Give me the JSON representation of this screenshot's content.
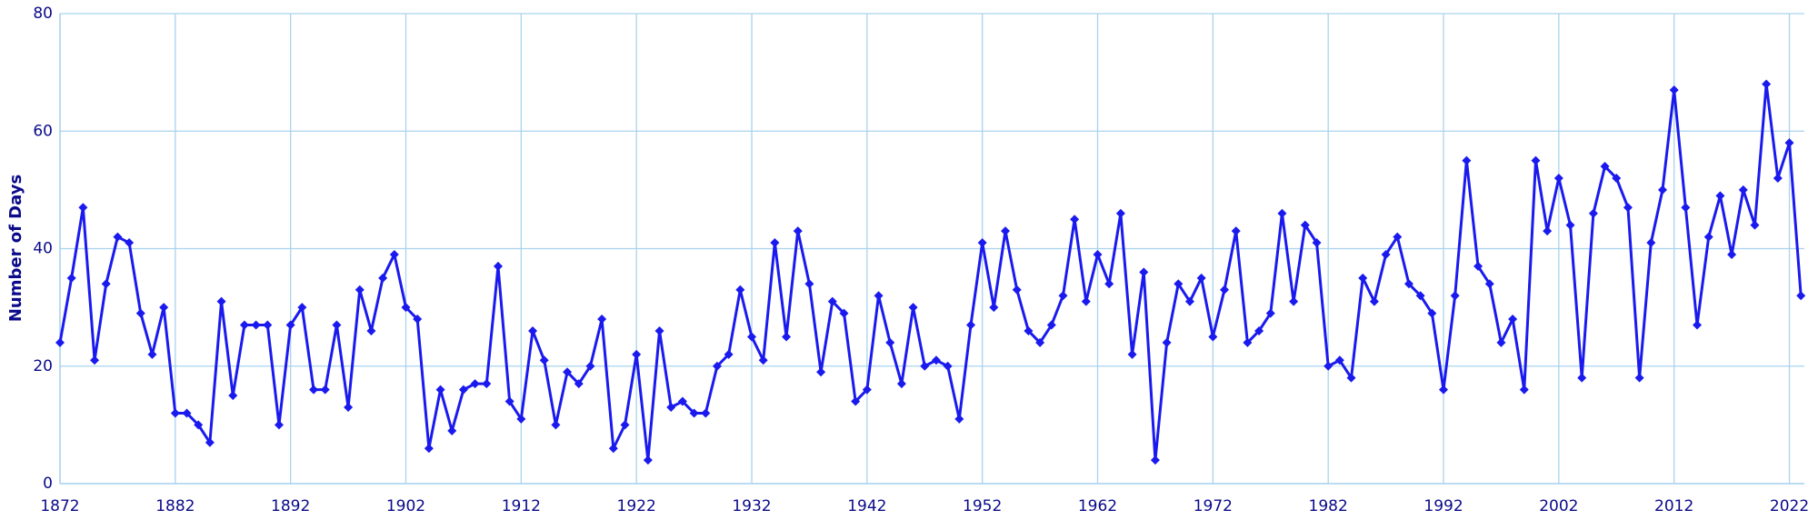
{
  "chart_data": {
    "type": "line",
    "ylabel": "Number of Days",
    "x": [
      1872,
      1873,
      1874,
      1875,
      1876,
      1877,
      1878,
      1879,
      1880,
      1881,
      1882,
      1883,
      1884,
      1885,
      1886,
      1887,
      1888,
      1889,
      1890,
      1891,
      1892,
      1893,
      1894,
      1895,
      1896,
      1897,
      1898,
      1899,
      1900,
      1901,
      1902,
      1903,
      1904,
      1905,
      1906,
      1907,
      1908,
      1909,
      1910,
      1911,
      1912,
      1913,
      1914,
      1915,
      1916,
      1917,
      1918,
      1919,
      1920,
      1921,
      1922,
      1923,
      1924,
      1925,
      1926,
      1927,
      1928,
      1929,
      1930,
      1931,
      1932,
      1933,
      1934,
      1935,
      1936,
      1937,
      1938,
      1939,
      1940,
      1941,
      1942,
      1943,
      1944,
      1945,
      1946,
      1947,
      1948,
      1949,
      1950,
      1951,
      1952,
      1953,
      1954,
      1955,
      1956,
      1957,
      1958,
      1959,
      1960,
      1961,
      1962,
      1963,
      1964,
      1965,
      1966,
      1967,
      1968,
      1969,
      1970,
      1971,
      1972,
      1973,
      1974,
      1975,
      1976,
      1977,
      1978,
      1979,
      1980,
      1981,
      1982,
      1983,
      1984,
      1985,
      1986,
      1987,
      1988,
      1989,
      1990,
      1991,
      1992,
      1993,
      1994,
      1995,
      1996,
      1997,
      1998,
      1999,
      2000,
      2001,
      2002,
      2003,
      2004,
      2005,
      2006,
      2007,
      2008,
      2009,
      2010,
      2011,
      2012,
      2013,
      2014,
      2015,
      2016,
      2017,
      2018,
      2019,
      2020,
      2021,
      2022,
      2023
    ],
    "values": [
      24,
      35,
      47,
      21,
      34,
      42,
      41,
      29,
      22,
      30,
      12,
      12,
      10,
      7,
      31,
      15,
      27,
      27,
      27,
      10,
      27,
      30,
      16,
      16,
      27,
      13,
      33,
      26,
      35,
      39,
      30,
      28,
      6,
      16,
      9,
      16,
      17,
      17,
      37,
      14,
      11,
      26,
      21,
      10,
      19,
      17,
      20,
      28,
      6,
      10,
      22,
      4,
      26,
      13,
      14,
      12,
      12,
      20,
      22,
      33,
      25,
      21,
      41,
      25,
      43,
      34,
      19,
      31,
      29,
      14,
      16,
      32,
      24,
      17,
      30,
      20,
      21,
      20,
      11,
      27,
      41,
      30,
      43,
      33,
      26,
      24,
      27,
      32,
      45,
      31,
      39,
      34,
      46,
      22,
      36,
      4,
      24,
      34,
      31,
      35,
      25,
      33,
      43,
      24,
      26,
      29,
      46,
      31,
      44,
      41,
      20,
      21,
      18,
      35,
      31,
      39,
      42,
      34,
      32,
      29,
      16,
      32,
      55,
      37,
      34,
      24,
      28,
      16,
      55,
      43,
      52,
      44,
      18,
      46,
      54,
      52,
      47,
      18,
      41,
      50,
      67,
      47,
      27,
      42,
      49,
      39,
      50,
      44,
      68,
      52,
      58,
      32
    ],
    "color": "#1a1aee",
    "xlim": [
      1872,
      2023.3
    ],
    "xticks": [
      1872,
      1882,
      1892,
      1902,
      1912,
      1922,
      1932,
      1942,
      1952,
      1962,
      1972,
      1982,
      1992,
      2002,
      2012,
      2022
    ],
    "ylim": [
      0,
      80
    ],
    "yticks": [
      0,
      20,
      40,
      60,
      80
    ],
    "grid": true
  }
}
